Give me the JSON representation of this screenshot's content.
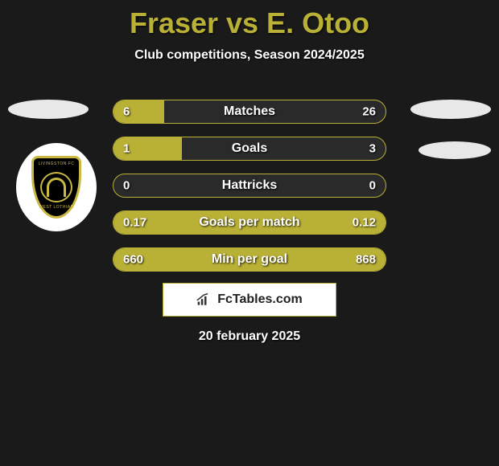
{
  "title": "Fraser vs E. Otoo",
  "subtitle": "Club competitions, Season 2024/2025",
  "date": "20 february 2025",
  "footer_brand": "FcTables.com",
  "colors": {
    "accent": "#b9b036",
    "bg": "#1a1a1a",
    "text": "#ffffff",
    "footer_bg": "#ffffff"
  },
  "bars": [
    {
      "label": "Matches",
      "left": "6",
      "right": "26",
      "left_pct": 18.75,
      "right_pct": 0
    },
    {
      "label": "Goals",
      "left": "1",
      "right": "3",
      "left_pct": 25.0,
      "right_pct": 0
    },
    {
      "label": "Hattricks",
      "left": "0",
      "right": "0",
      "left_pct": 0,
      "right_pct": 0
    },
    {
      "label": "Goals per match",
      "left": "0.17",
      "right": "0.12",
      "left_pct": 100,
      "right_pct": 0
    },
    {
      "label": "Min per goal",
      "left": "660",
      "right": "868",
      "left_pct": 0,
      "right_pct": 100
    }
  ]
}
